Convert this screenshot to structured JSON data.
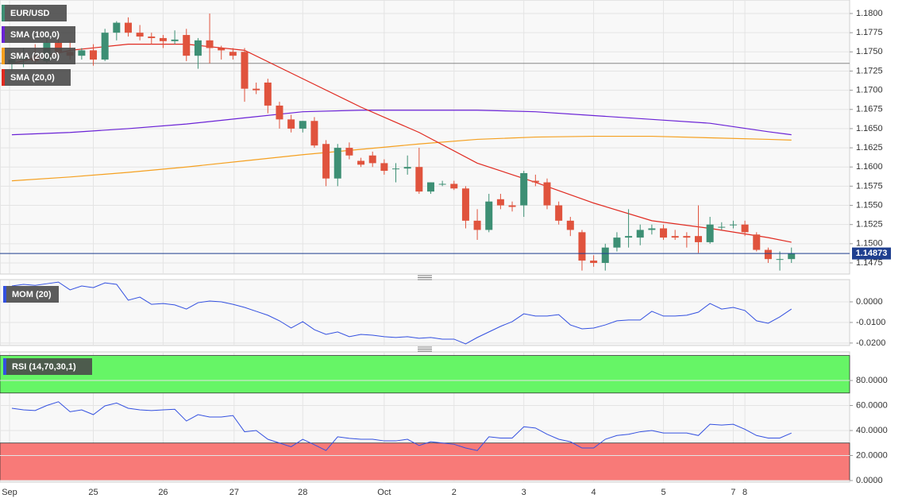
{
  "chart_data": {
    "type": "candlestick",
    "title": "EUR/USD",
    "candles": {
      "open": [
        1.1735,
        1.174,
        1.1745,
        1.1738,
        1.1762,
        1.175,
        1.1745,
        1.1752,
        1.174,
        1.1775,
        1.1788,
        1.1775,
        1.177,
        1.1768,
        1.1764,
        1.1772,
        1.1745,
        1.1765,
        1.1755,
        1.175,
        1.175,
        1.1702,
        1.171,
        1.168,
        1.1662,
        1.165,
        1.166,
        1.163,
        1.1585,
        1.1625,
        1.1608,
        1.1615,
        1.1605,
        1.1598,
        1.1598,
        1.16,
        1.1568,
        1.1578,
        1.1578,
        1.1572,
        1.153,
        1.1518,
        1.1558,
        1.155,
        1.155,
        1.1582,
        1.158,
        1.155,
        1.153,
        1.1515,
        1.1478,
        1.1475,
        1.1495,
        1.1508,
        1.1508,
        1.1518,
        1.152,
        1.151,
        1.151,
        1.151,
        1.1502,
        1.1522,
        1.1525,
        1.1525,
        1.1512,
        1.1492,
        1.148,
        1.148
      ],
      "high": [
        1.175,
        1.1755,
        1.176,
        1.177,
        1.1775,
        1.1765,
        1.1755,
        1.176,
        1.178,
        1.179,
        1.1795,
        1.1785,
        1.1775,
        1.1772,
        1.1778,
        1.178,
        1.1768,
        1.18,
        1.1758,
        1.1755,
        1.1755,
        1.171,
        1.1715,
        1.1685,
        1.1668,
        1.166,
        1.1665,
        1.1635,
        1.163,
        1.1632,
        1.1612,
        1.162,
        1.161,
        1.1605,
        1.1615,
        1.1625,
        1.158,
        1.1582,
        1.1582,
        1.1575,
        1.1545,
        1.1565,
        1.1565,
        1.1555,
        1.1595,
        1.159,
        1.1585,
        1.1555,
        1.1535,
        1.1518,
        1.1485,
        1.15,
        1.1515,
        1.1545,
        1.1525,
        1.1525,
        1.1525,
        1.1518,
        1.1515,
        1.155,
        1.1535,
        1.1528,
        1.153,
        1.153,
        1.1515,
        1.1495,
        1.149,
        1.1495
      ],
      "low": [
        1.1725,
        1.173,
        1.1735,
        1.1735,
        1.1745,
        1.174,
        1.174,
        1.1732,
        1.1738,
        1.1765,
        1.177,
        1.1765,
        1.176,
        1.1755,
        1.176,
        1.1738,
        1.1728,
        1.1735,
        1.174,
        1.174,
        1.1685,
        1.1695,
        1.167,
        1.165,
        1.1645,
        1.1645,
        1.1625,
        1.1575,
        1.1575,
        1.161,
        1.16,
        1.16,
        1.159,
        1.158,
        1.159,
        1.1565,
        1.1565,
        1.1575,
        1.157,
        1.152,
        1.1505,
        1.1515,
        1.1545,
        1.1542,
        1.1535,
        1.1575,
        1.1545,
        1.1525,
        1.151,
        1.1465,
        1.147,
        1.1465,
        1.149,
        1.1495,
        1.1498,
        1.1512,
        1.1505,
        1.1505,
        1.1495,
        1.1488,
        1.15,
        1.1518,
        1.152,
        1.151,
        1.149,
        1.1475,
        1.1465,
        1.1475
      ],
      "close": [
        1.174,
        1.1745,
        1.1738,
        1.1762,
        1.175,
        1.1745,
        1.1752,
        1.174,
        1.1775,
        1.1788,
        1.1775,
        1.177,
        1.1768,
        1.1764,
        1.1766,
        1.1745,
        1.1765,
        1.1755,
        1.1752,
        1.1745,
        1.1702,
        1.17,
        1.168,
        1.1662,
        1.165,
        1.166,
        1.1628,
        1.1585,
        1.1625,
        1.1615,
        1.1603,
        1.1605,
        1.1595,
        1.1598,
        1.16,
        1.1568,
        1.158,
        1.1578,
        1.1572,
        1.153,
        1.1518,
        1.1555,
        1.155,
        1.1548,
        1.1592,
        1.158,
        1.155,
        1.153,
        1.1518,
        1.1478,
        1.1475,
        1.1495,
        1.1508,
        1.151,
        1.1518,
        1.152,
        1.1508,
        1.1508,
        1.1508,
        1.1502,
        1.1525,
        1.1522,
        1.1525,
        1.1515,
        1.1492,
        1.148,
        1.148,
        1.1487
      ],
      "up_color": "#3d8f74",
      "down_color": "#e0533d"
    },
    "overlays": [
      {
        "name": "SMA (100,0)",
        "color": "#6a22d6",
        "x": [
          0,
          5,
          10,
          15,
          20,
          25,
          30,
          35,
          40,
          45,
          50,
          55,
          60,
          65,
          67
        ],
        "values": [
          1.1642,
          1.1645,
          1.165,
          1.1656,
          1.1664,
          1.1672,
          1.1674,
          1.1674,
          1.1674,
          1.1672,
          1.1667,
          1.1662,
          1.1657,
          1.1646,
          1.1642
        ]
      },
      {
        "name": "SMA (200,0)",
        "color": "#f5a020",
        "x": [
          0,
          5,
          10,
          15,
          20,
          25,
          30,
          35,
          40,
          45,
          50,
          55,
          60,
          65,
          67
        ],
        "values": [
          1.1582,
          1.1587,
          1.1593,
          1.16,
          1.1608,
          1.1616,
          1.1623,
          1.163,
          1.1636,
          1.1639,
          1.164,
          1.164,
          1.1638,
          1.1636,
          1.1635
        ]
      },
      {
        "name": "SMA (20,0)",
        "color": "#e02a20",
        "x": [
          0,
          5,
          10,
          15,
          20,
          25,
          30,
          35,
          40,
          45,
          50,
          55,
          60,
          65,
          67
        ],
        "values": [
          1.1735,
          1.1752,
          1.176,
          1.176,
          1.1752,
          1.1715,
          1.1678,
          1.1645,
          1.1605,
          1.158,
          1.1553,
          1.153,
          1.152,
          1.1508,
          1.1502
        ]
      }
    ],
    "hline": 1.1735,
    "last_price": 1.14873,
    "xlim": [
      -1.02,
      72.0
    ],
    "xticks": [
      {
        "value": -0.2,
        "label": "Sep"
      },
      {
        "value": 7,
        "label": "25"
      },
      {
        "value": 13,
        "label": "26"
      },
      {
        "value": 19.1,
        "label": "27"
      },
      {
        "value": 25,
        "label": "28"
      },
      {
        "value": 32,
        "label": "Oct"
      },
      {
        "value": 38,
        "label": "2"
      },
      {
        "value": 44,
        "label": "3"
      },
      {
        "value": 50,
        "label": "4"
      },
      {
        "value": 56,
        "label": "5"
      },
      {
        "value": 62,
        "label": "7"
      },
      {
        "value": 63,
        "label": "8"
      }
    ],
    "ylim": [
      1.14605,
      1.18176
    ],
    "yticks": [
      {
        "value": 1.18,
        "label": "1.1800"
      },
      {
        "value": 1.1775,
        "label": "1.1775"
      },
      {
        "value": 1.175,
        "label": "1.1750"
      },
      {
        "value": 1.1725,
        "label": "1.1725"
      },
      {
        "value": 1.17,
        "label": "1.1700"
      },
      {
        "value": 1.1675,
        "label": "1.1675"
      },
      {
        "value": 1.165,
        "label": "1.1650"
      },
      {
        "value": 1.1625,
        "label": "1.1625"
      },
      {
        "value": 1.16,
        "label": "1.1600"
      },
      {
        "value": 1.1575,
        "label": "1.1575"
      },
      {
        "value": 1.155,
        "label": "1.1550"
      },
      {
        "value": 1.1525,
        "label": "1.1525"
      },
      {
        "value": 1.15,
        "label": "1.1500"
      },
      {
        "value": 1.1475,
        "label": "1.1475"
      }
    ],
    "grid": true,
    "indicators": [
      {
        "name": "MOM (20)",
        "color": "#3350e0",
        "values": [
          0.0077,
          0.0085,
          0.008,
          0.0088,
          0.0096,
          0.0058,
          0.0077,
          0.0069,
          0.0092,
          0.0085,
          0.0008,
          0.0023,
          -0.0012,
          -0.0008,
          -0.0015,
          -0.0035,
          -0.0004,
          0.0004,
          0.0,
          -0.0012,
          -0.0027,
          -0.0046,
          -0.0065,
          -0.0092,
          -0.0127,
          -0.0096,
          -0.0135,
          -0.0158,
          -0.0146,
          -0.0169,
          -0.0158,
          -0.0162,
          -0.0169,
          -0.0173,
          -0.0169,
          -0.0177,
          -0.0173,
          -0.0181,
          -0.0181,
          -0.0204,
          -0.0173,
          -0.0146,
          -0.0119,
          -0.0096,
          -0.0058,
          -0.0069,
          -0.0069,
          -0.0062,
          -0.0112,
          -0.0131,
          -0.0127,
          -0.0112,
          -0.0092,
          -0.0088,
          -0.0088,
          -0.0046,
          -0.0069,
          -0.0069,
          -0.0065,
          -0.005,
          -0.0008,
          -0.0035,
          -0.0027,
          -0.0042,
          -0.0092,
          -0.0104,
          -0.0073,
          -0.0035
        ],
        "ylim": [
          -0.0212,
          0.0108
        ],
        "yticks": [
          {
            "value": 0,
            "label": "0.0000"
          },
          {
            "value": -0.01,
            "label": "-0.0100"
          },
          {
            "value": -0.02,
            "label": "-0.0200"
          }
        ]
      },
      {
        "name": "RSI (14,70,30,1)",
        "color": "#3350e0",
        "values": [
          57.8,
          56.5,
          56,
          60,
          63,
          55,
          56.5,
          52.7,
          59.7,
          62,
          57.8,
          56.5,
          56,
          56.5,
          57,
          47.6,
          52.7,
          50.8,
          50.8,
          52,
          39,
          40,
          33,
          30,
          27,
          33,
          28.6,
          24,
          35,
          33.7,
          33,
          33,
          31.7,
          31.7,
          33,
          28,
          31,
          30,
          29,
          26,
          24,
          35,
          34,
          34,
          43,
          42,
          37,
          33,
          31,
          26,
          26,
          33,
          36,
          37,
          39,
          40,
          38,
          38,
          38,
          36,
          45,
          44.4,
          45,
          41,
          36,
          34,
          34,
          38
        ],
        "ylim": [
          -1.3,
          102.9
        ],
        "yticks": [
          {
            "value": 80,
            "label": "80.0000"
          },
          {
            "value": 60,
            "label": "60.0000"
          },
          {
            "value": 40,
            "label": "40.0000"
          },
          {
            "value": 20,
            "label": "20.0000"
          },
          {
            "value": 0,
            "label": "0.0000"
          }
        ],
        "bands": [
          {
            "from": 70,
            "to": 100,
            "color": "#66f566"
          },
          {
            "from": 0,
            "to": 30,
            "color": "#f87a78"
          }
        ]
      }
    ]
  }
}
